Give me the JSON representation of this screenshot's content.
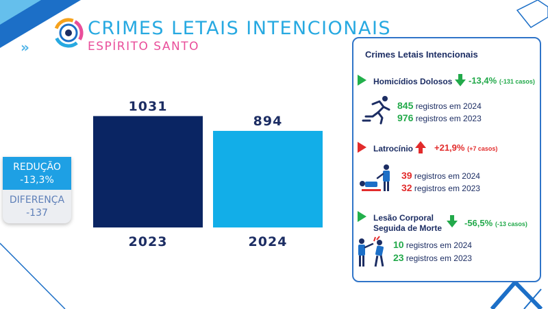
{
  "header": {
    "title": "CRIMES LETAIS INTENCIONAIS",
    "subtitle": "ESPÍRITO SANTO",
    "chevrons": "»",
    "logo_icon": "eye-logo-icon"
  },
  "chart_data": {
    "type": "bar",
    "categories": [
      "2023",
      "2024"
    ],
    "values": [
      1031,
      894
    ],
    "colors": [
      "#0a2563",
      "#12aee8"
    ],
    "ylim": [
      0,
      1300
    ],
    "title": "",
    "xlabel": "",
    "ylabel": ""
  },
  "summary": {
    "reduction_label": "REDUÇÃO",
    "reduction_value": "-13,3%",
    "difference_label": "DIFERENÇA",
    "difference_value": "-137"
  },
  "panel": {
    "title": "Crimes Letais Intencionais",
    "items": [
      {
        "name": "Homicídios Dolosos",
        "change": "-13,4%",
        "change_detail": "(-131 casos)",
        "trend": "down",
        "icon": "running-person-icon",
        "count_2024": "845",
        "label_2024": "registros em 2024",
        "count_2023": "976",
        "label_2023": "registros em 2023"
      },
      {
        "name": "Latrocínio",
        "change": "+21,9%",
        "change_detail": "(+7 casos)",
        "trend": "up",
        "icon": "robbery-victim-icon",
        "count_2024": "39",
        "label_2024": "registros em 2024",
        "count_2023": "32",
        "label_2023": "registros em 2023"
      },
      {
        "name_line1": "Lesão Corporal",
        "name_line2": "Seguida de Morte",
        "change": "-56,5%",
        "change_detail": "(-13 casos)",
        "trend": "down",
        "icon": "assault-icon",
        "count_2024": "10",
        "label_2024": "registros em 2024",
        "count_2023": "23",
        "label_2023": "registros em 2023"
      }
    ]
  },
  "colors": {
    "accent": "#27a9e1",
    "pink": "#e94e9a",
    "navy": "#0a2563",
    "green": "#22a94a",
    "red": "#e22b2b"
  }
}
